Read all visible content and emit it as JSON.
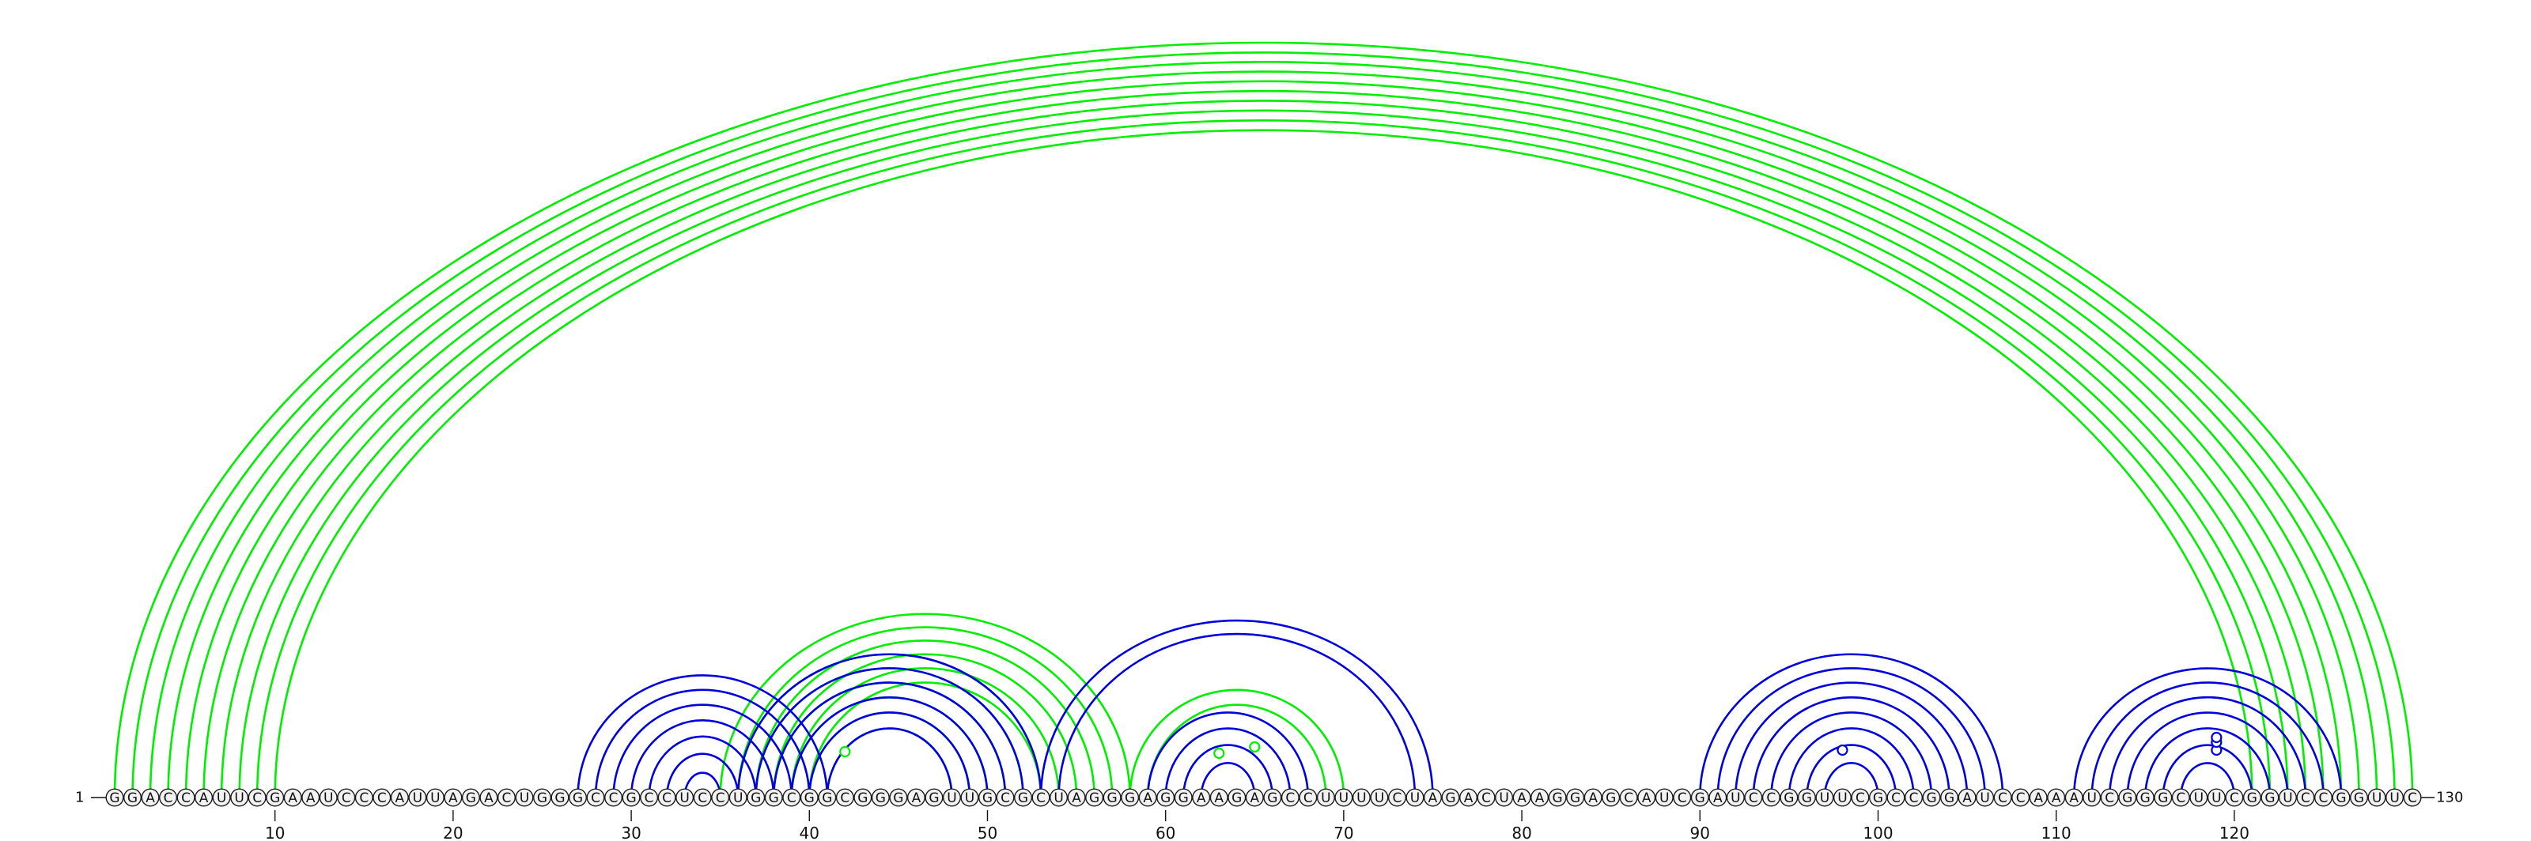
{
  "sequence": "GGACCAUUCGAAUCCCAUUAGACUGGGCCGCCUCCUGGCGGCGGGAGUUGCGCUAGGGAGGAAGAGCCUUUUCUAGACUAAGGAGCAUCGAUCCGGUUCGCCGGAUCCAAAUCGGGCUUCGGUCCGGUUC",
  "start_label": "1",
  "end_label": "130",
  "tick_positions": [
    10,
    20,
    30,
    40,
    50,
    60,
    70,
    80,
    90,
    100,
    110,
    120
  ],
  "colors": {
    "green": "#00ee00",
    "blue": "#0000dd",
    "circle_fill": "#f2f2f2"
  },
  "chart_data": {
    "type": "arc_diagram",
    "series": [
      {
        "color": "green",
        "pairs": [
          [
            1,
            130
          ],
          [
            2,
            129
          ],
          [
            3,
            128
          ],
          [
            4,
            127
          ],
          [
            5,
            126
          ],
          [
            6,
            125
          ],
          [
            7,
            124
          ],
          [
            8,
            123
          ],
          [
            9,
            122
          ],
          [
            10,
            121
          ],
          [
            35,
            58
          ],
          [
            36,
            57
          ],
          [
            37,
            56
          ],
          [
            38,
            55
          ],
          [
            39,
            54
          ],
          [
            40,
            53
          ],
          [
            36,
            53
          ],
          [
            37,
            52
          ],
          [
            38,
            51
          ],
          [
            39,
            50
          ],
          [
            40,
            49
          ],
          [
            41,
            48
          ],
          [
            58,
            70
          ],
          [
            59,
            69
          ]
        ],
        "markers": [
          [
            65,
            0.6
          ],
          [
            42,
            0.45
          ],
          [
            63,
            0.4
          ]
        ]
      },
      {
        "color": "blue",
        "pairs": [
          [
            27,
            41
          ],
          [
            28,
            40
          ],
          [
            29,
            39
          ],
          [
            30,
            38
          ],
          [
            31,
            37
          ],
          [
            32,
            36
          ],
          [
            33,
            35
          ],
          [
            36,
            53
          ],
          [
            37,
            52
          ],
          [
            38,
            51
          ],
          [
            39,
            50
          ],
          [
            40,
            49
          ],
          [
            41,
            48
          ],
          [
            53,
            75
          ],
          [
            54,
            74
          ],
          [
            59,
            68
          ],
          [
            60,
            67
          ],
          [
            61,
            66
          ],
          [
            62,
            65
          ],
          [
            90,
            107
          ],
          [
            91,
            106
          ],
          [
            92,
            105
          ],
          [
            93,
            104
          ],
          [
            94,
            103
          ],
          [
            95,
            102
          ],
          [
            96,
            101
          ],
          [
            97,
            100
          ],
          [
            111,
            126
          ],
          [
            112,
            125
          ],
          [
            113,
            124
          ],
          [
            114,
            123
          ],
          [
            115,
            122
          ],
          [
            116,
            121
          ],
          [
            117,
            120
          ]
        ],
        "markers": [
          [
            98,
            0.5
          ],
          [
            119,
            0.5
          ],
          [
            119,
            0.75
          ],
          [
            119,
            0.9
          ]
        ]
      }
    ]
  }
}
